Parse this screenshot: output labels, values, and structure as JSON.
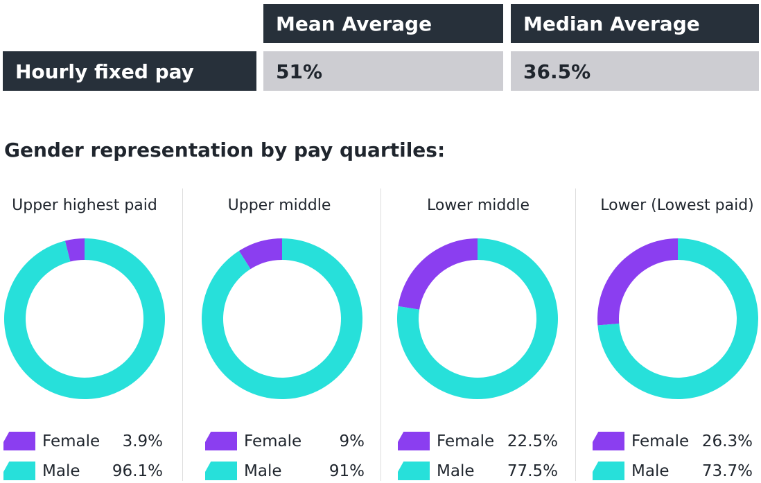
{
  "colors": {
    "dark": "#27303a",
    "cell": "#cdcdd2",
    "female": "#8b3ef0",
    "male": "#27e0da"
  },
  "pay_table": {
    "col1_header": "Mean Average",
    "col2_header": "Median Average",
    "row_label": "Hourly fixed pay",
    "mean": "51%",
    "median": "36.5%"
  },
  "section_title": "Gender representation by pay quartiles:",
  "chart_data": {
    "type": "pie",
    "subtype": "donut",
    "charts": [
      {
        "title": "Upper highest paid",
        "female_label": "Female",
        "male_label": "Male",
        "female": 3.9,
        "male": 96.1,
        "female_text": "3.9%",
        "male_text": "96.1%"
      },
      {
        "title": "Upper middle",
        "female_label": "Female",
        "male_label": "Male",
        "female": 9,
        "male": 91,
        "female_text": "9%",
        "male_text": "91%"
      },
      {
        "title": "Lower middle",
        "female_label": "Female",
        "male_label": "Male",
        "female": 22.5,
        "male": 77.5,
        "female_text": "22.5%",
        "male_text": "77.5%"
      },
      {
        "title": "Lower (Lowest paid)",
        "female_label": "Female",
        "male_label": "Male",
        "female": 26.3,
        "male": 73.7,
        "female_text": "26.3%",
        "male_text": "73.7%"
      }
    ]
  }
}
